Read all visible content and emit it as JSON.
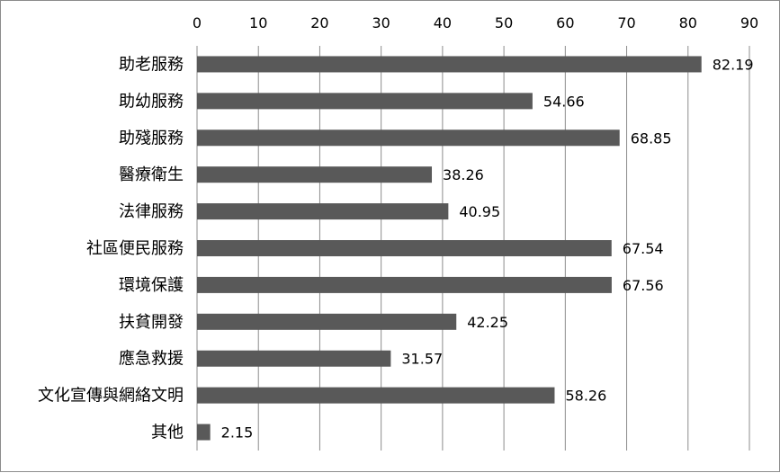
{
  "chart_data": {
    "type": "bar",
    "orientation": "horizontal",
    "categories": [
      "助老服務",
      "助幼服務",
      "助殘服務",
      "醫療衛生",
      "法律服務",
      "社區便民服務",
      "環境保護",
      "扶貧開發",
      "應急救援",
      "文化宣傳與網絡文明",
      "其他"
    ],
    "values": [
      82.19,
      54.66,
      68.85,
      38.26,
      40.95,
      67.54,
      67.56,
      42.25,
      31.57,
      58.26,
      2.15
    ],
    "value_labels": [
      "82.19",
      "54.66",
      "68.85",
      "38.26",
      "40.95",
      "67.54",
      "67.56",
      "42.25",
      "31.57",
      "58.26",
      "2.15"
    ],
    "x_ticks": [
      "0",
      "10",
      "20",
      "30",
      "40",
      "50",
      "60",
      "70",
      "80",
      "90"
    ],
    "xlim": [
      0,
      90
    ],
    "x_axis_position": "top",
    "grid": "vertical",
    "legend": "none",
    "title": "",
    "xlabel": "",
    "ylabel": "",
    "colors": {
      "bar": "#595959",
      "grid": "#8c8c8c",
      "frame": "#8c8c8c"
    }
  }
}
